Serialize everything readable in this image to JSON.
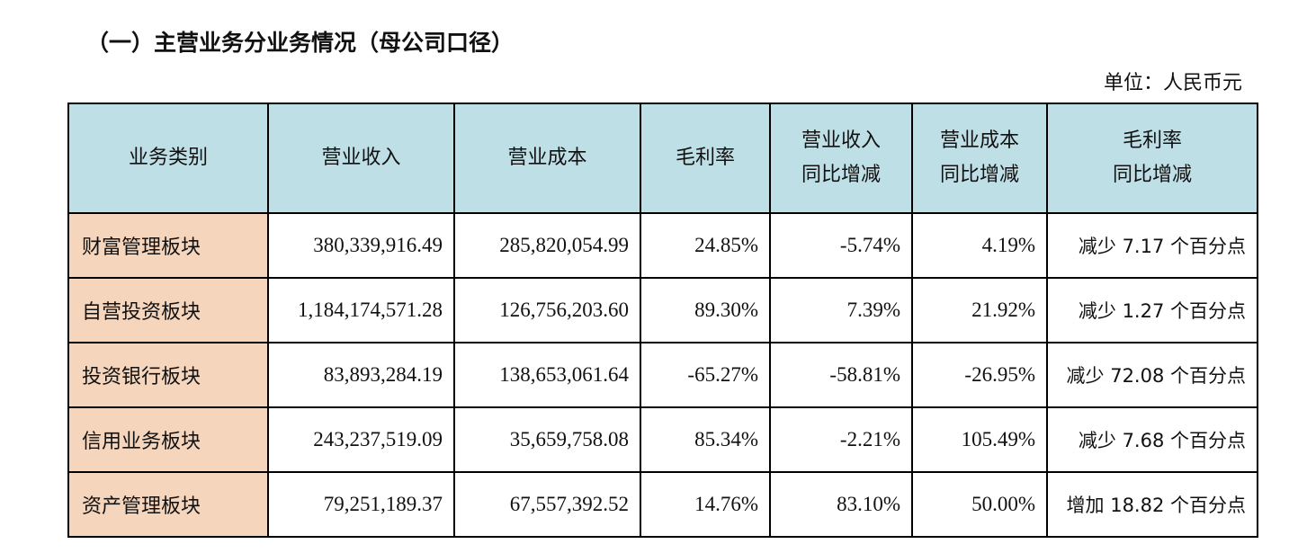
{
  "section_title": "（一）主营业务分业务情况（母公司口径）",
  "unit": "单位：人民币元",
  "table": {
    "headers": [
      {
        "line1": "业务类别",
        "line2": ""
      },
      {
        "line1": "营业收入",
        "line2": ""
      },
      {
        "line1": "营业成本",
        "line2": ""
      },
      {
        "line1": "毛利率",
        "line2": ""
      },
      {
        "line1": "营业收入",
        "line2": "同比增减"
      },
      {
        "line1": "营业成本",
        "line2": "同比增减"
      },
      {
        "line1": "毛利率",
        "line2": "同比增减"
      }
    ],
    "rows": [
      {
        "category": "财富管理板块",
        "revenue": "380,339,916.49",
        "cost": "285,820,054.99",
        "margin": "24.85%",
        "revenue_yoy": "-5.74%",
        "cost_yoy": "4.19%",
        "margin_yoy": "减少 7.17 个百分点"
      },
      {
        "category": "自营投资板块",
        "revenue": "1,184,174,571.28",
        "cost": "126,756,203.60",
        "margin": "89.30%",
        "revenue_yoy": "7.39%",
        "cost_yoy": "21.92%",
        "margin_yoy": "减少 1.27 个百分点"
      },
      {
        "category": "投资银行板块",
        "revenue": "83,893,284.19",
        "cost": "138,653,061.64",
        "margin": "-65.27%",
        "revenue_yoy": "-58.81%",
        "cost_yoy": "-26.95%",
        "margin_yoy": "减少 72.08 个百分点"
      },
      {
        "category": "信用业务板块",
        "revenue": "243,237,519.09",
        "cost": "35,659,758.08",
        "margin": "85.34%",
        "revenue_yoy": "-2.21%",
        "cost_yoy": "105.49%",
        "margin_yoy": "减少 7.68 个百分点"
      },
      {
        "category": "资产管理板块",
        "revenue": "79,251,189.37",
        "cost": "67,557,392.52",
        "margin": "14.76%",
        "revenue_yoy": "83.10%",
        "cost_yoy": "50.00%",
        "margin_yoy": "增加 18.82 个百分点"
      }
    ]
  },
  "colors": {
    "header_bg": "#bfdfe7",
    "category_bg": "#f5d5bc",
    "border": "#000000"
  }
}
